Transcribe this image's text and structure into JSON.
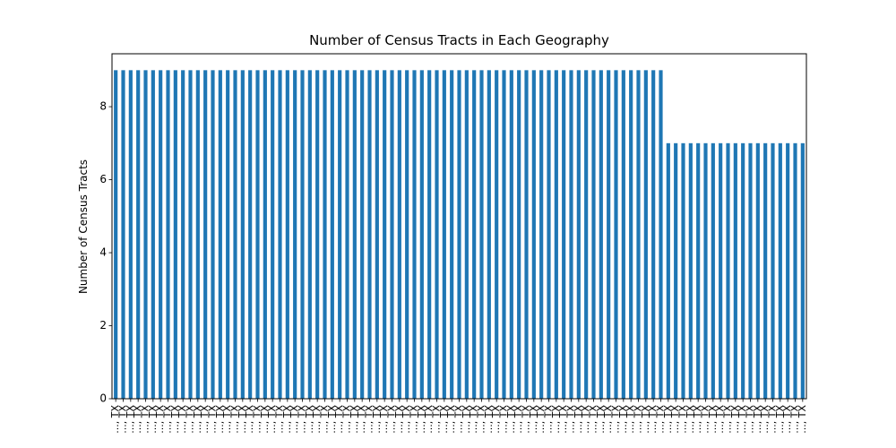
{
  "chart_data": {
    "type": "bar",
    "title": "Number of Census Tracts in Each Geography",
    "xlabel": "",
    "ylabel": "Number of Census Tracts",
    "ylim": [
      0,
      9.45
    ],
    "yticks": [
      0,
      2,
      4,
      6,
      8
    ],
    "grid": false,
    "legend": "none",
    "bar_color": "#1f77b4",
    "category_labels_visible_text": "..., TX",
    "values": [
      9,
      9,
      9,
      9,
      9,
      9,
      9,
      9,
      9,
      9,
      9,
      9,
      9,
      9,
      9,
      9,
      9,
      9,
      9,
      9,
      9,
      9,
      9,
      9,
      9,
      9,
      9,
      9,
      9,
      9,
      9,
      9,
      9,
      9,
      9,
      9,
      9,
      9,
      9,
      9,
      9,
      9,
      9,
      9,
      9,
      9,
      9,
      9,
      9,
      9,
      9,
      9,
      9,
      9,
      9,
      9,
      9,
      9,
      9,
      9,
      9,
      9,
      9,
      9,
      9,
      9,
      9,
      9,
      9,
      9,
      9,
      9,
      9,
      9,
      7,
      7,
      7,
      7,
      7,
      7,
      7,
      7,
      7,
      7,
      7,
      7,
      7,
      7,
      7,
      7,
      7,
      7,
      7
    ]
  }
}
